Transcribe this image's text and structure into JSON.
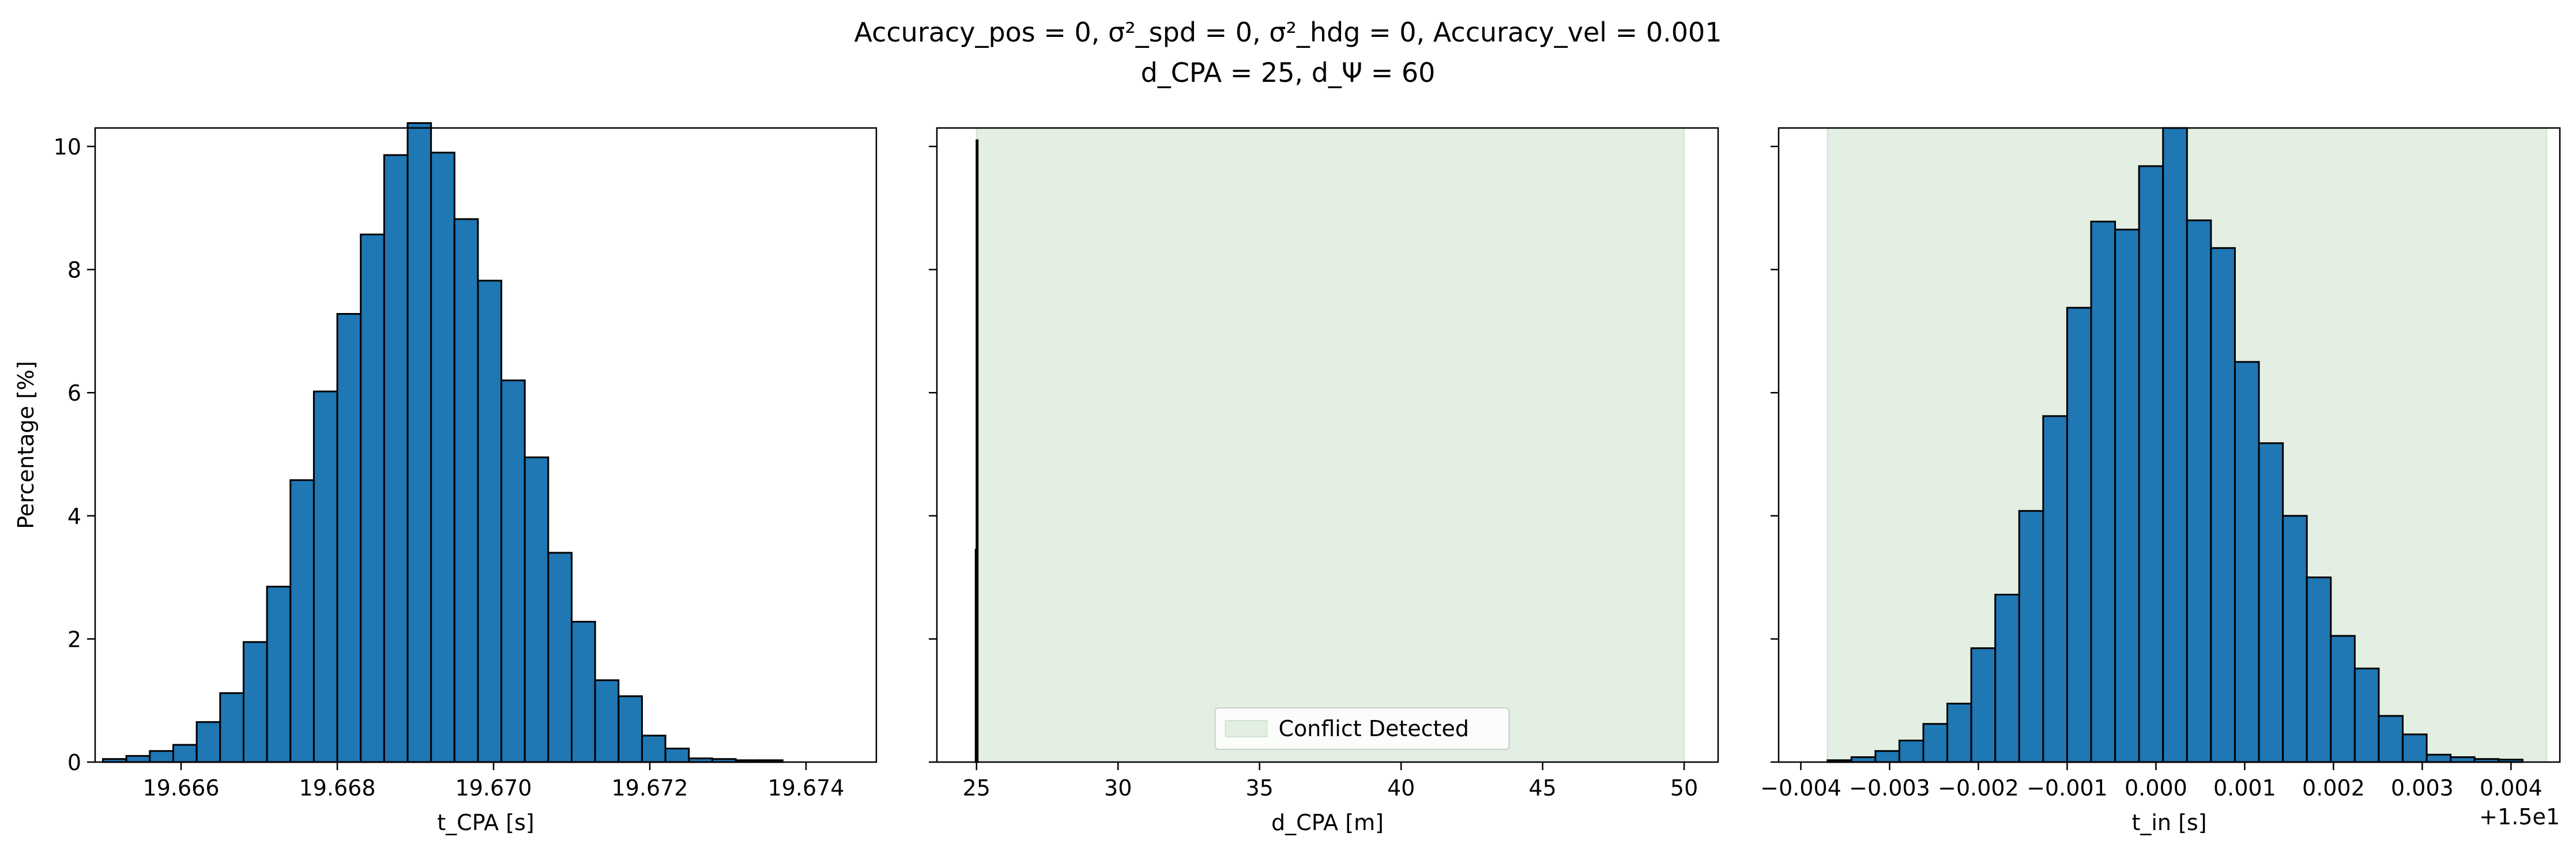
{
  "title": {
    "line1": "Accuracy_pos = 0, σ²_spd = 0, σ²_hdg = 0, Accuracy_vel = 0.001",
    "line2": "d_CPA = 25, d_Ψ = 60"
  },
  "colors": {
    "bar_fill": "#1f77b4",
    "bar_edge": "#000000",
    "conflict_fill": "#e3efe3",
    "conflict_edge": "#cfe3cf"
  },
  "chart_data": [
    {
      "type": "bar",
      "panel": "left",
      "xlabel": "t_CPA [s]",
      "ylabel": "Percentage [%]",
      "xlim": [
        19.6649,
        19.6749
      ],
      "ylim": [
        0,
        10.3
      ],
      "xticks": [
        19.666,
        19.668,
        19.67,
        19.672,
        19.674
      ],
      "xtick_labels": [
        "19.666",
        "19.668",
        "19.670",
        "19.672",
        "19.674"
      ],
      "yticks": [
        0,
        2,
        4,
        6,
        8,
        10
      ],
      "ytick_labels": [
        "0",
        "2",
        "4",
        "6",
        "8",
        "10"
      ],
      "bin_start": 19.665,
      "bin_width": 0.0003,
      "values": [
        0.05,
        0.1,
        0.18,
        0.28,
        0.65,
        1.12,
        1.95,
        2.85,
        4.58,
        6.02,
        7.28,
        8.57,
        9.86,
        10.38,
        9.9,
        8.82,
        7.82,
        6.2,
        4.95,
        3.4,
        2.28,
        1.33,
        1.07,
        0.43,
        0.22,
        0.06,
        0.05,
        0.03,
        0.03
      ],
      "shade": null
    },
    {
      "type": "bar",
      "panel": "middle",
      "xlabel": "d_CPA [m]",
      "ylabel": "",
      "xlim": [
        23.6,
        51.2
      ],
      "ylim": [
        0,
        10.3
      ],
      "xticks": [
        25,
        30,
        35,
        40,
        45,
        50
      ],
      "xtick_labels": [
        "25",
        "30",
        "35",
        "40",
        "45",
        "50"
      ],
      "yticks": [
        0,
        2,
        4,
        6,
        8,
        10
      ],
      "ytick_labels": [
        "",
        "",
        "",
        "",
        "",
        ""
      ],
      "bin_start": 24.88,
      "bin_width": 0.03,
      "values": [
        0.0,
        0.0,
        0.0,
        3.45,
        10.1,
        0.0
      ],
      "shade": [
        25,
        50
      ],
      "legend_label": "Conflict Detected"
    },
    {
      "type": "bar",
      "panel": "right",
      "xlabel": "t_in [s]",
      "ylabel": "",
      "xlim": [
        -0.00425,
        0.00455
      ],
      "ylim": [
        0,
        10.3
      ],
      "offset_label": "+1.5e1",
      "xticks": [
        -0.004,
        -0.003,
        -0.002,
        -0.001,
        0.0,
        0.001,
        0.002,
        0.003,
        0.004
      ],
      "xtick_labels": [
        "−0.004",
        "−0.003",
        "−0.002",
        "−0.001",
        "0.000",
        "0.001",
        "0.002",
        "0.003",
        "0.004"
      ],
      "yticks": [
        0,
        2,
        4,
        6,
        8,
        10
      ],
      "ytick_labels": [
        "",
        "",
        "",
        "",
        "",
        ""
      ],
      "bin_start": -0.0037,
      "bin_width": 0.00027,
      "values": [
        0.03,
        0.08,
        0.18,
        0.35,
        0.62,
        0.95,
        1.85,
        2.72,
        4.08,
        5.62,
        7.38,
        8.78,
        8.65,
        9.68,
        10.3,
        8.8,
        8.35,
        6.5,
        5.18,
        4.0,
        3.0,
        2.05,
        1.52,
        0.75,
        0.45,
        0.12,
        0.08,
        0.05,
        0.04
      ],
      "shade": [
        -0.0037,
        0.0044
      ]
    }
  ]
}
